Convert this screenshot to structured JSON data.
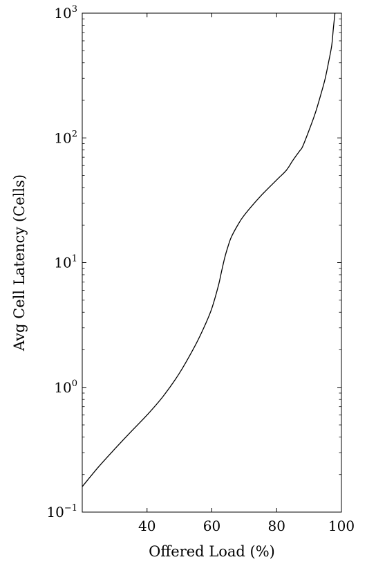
{
  "chart_data": {
    "type": "line",
    "title": "",
    "xlabel": "Offered Load (%)",
    "ylabel": "Avg Cell Latency (Cells)",
    "xlim": [
      20,
      100
    ],
    "ylim": [
      0.1,
      1000
    ],
    "yscale": "log",
    "grid": false,
    "x_ticks": [
      40,
      60,
      80,
      100
    ],
    "y_ticks": [
      {
        "value": 0.1,
        "base": "10",
        "exp": "−1"
      },
      {
        "value": 1,
        "base": "10",
        "exp": "0"
      },
      {
        "value": 10,
        "base": "10",
        "exp": "1"
      },
      {
        "value": 100,
        "base": "10",
        "exp": "2"
      },
      {
        "value": 1000,
        "base": "10",
        "exp": "3"
      }
    ],
    "series": [
      {
        "color": "#000000",
        "x": [
          20,
          25,
          30,
          35,
          40,
          45,
          50,
          55,
          58,
          60,
          62,
          63,
          64,
          65,
          66,
          68,
          70,
          75,
          80,
          83,
          85,
          87,
          88,
          90,
          92,
          94,
          95,
          96,
          97,
          97.5,
          98
        ],
        "y": [
          0.16,
          0.23,
          0.32,
          0.44,
          0.6,
          0.85,
          1.3,
          2.2,
          3.2,
          4.3,
          6.5,
          8.5,
          11,
          13.5,
          16,
          20,
          24,
          34,
          46,
          55,
          66,
          78,
          85,
          115,
          160,
          240,
          300,
          400,
          550,
          750,
          1000
        ]
      }
    ]
  }
}
